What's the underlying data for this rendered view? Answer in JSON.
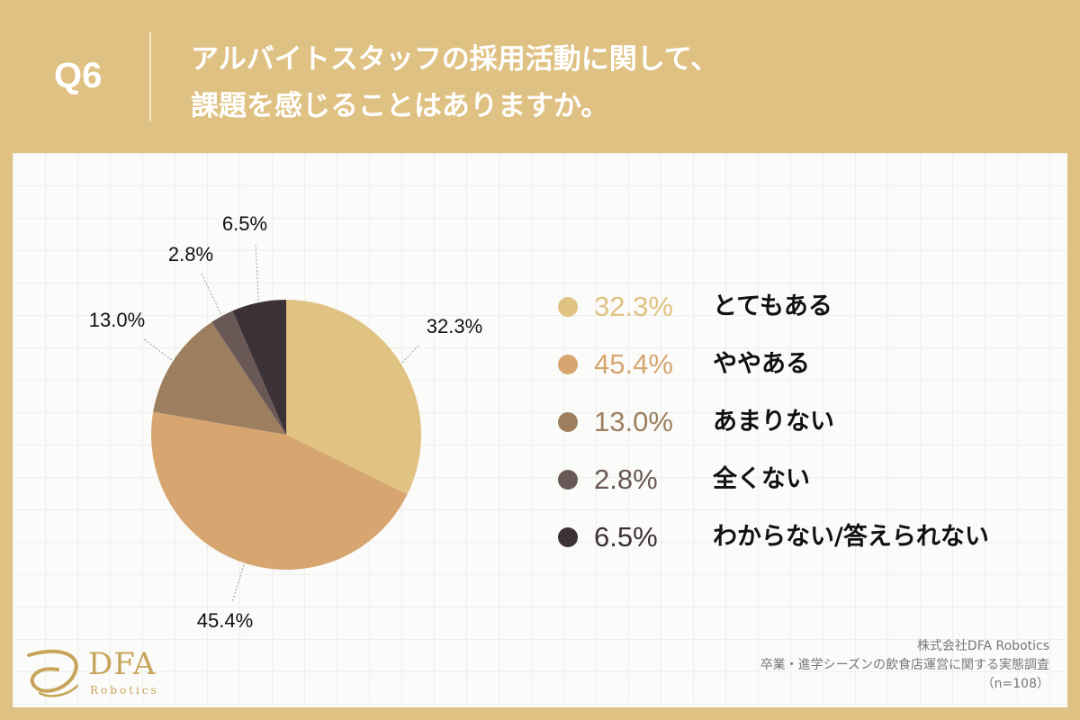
{
  "header": {
    "question_number": "Q6",
    "title_line1": "アルバイトスタッフの採用活動に関して、",
    "title_line2": "課題を感じることはありますか。"
  },
  "colors": {
    "background": "#dfc283",
    "series": [
      "#e0c282",
      "#d6a570",
      "#9d7f5f",
      "#695855",
      "#3d3138"
    ]
  },
  "chart_data": {
    "type": "pie",
    "title": "",
    "categories": [
      "とてもある",
      "ややある",
      "あまりない",
      "全くない",
      "わからない/答えられない"
    ],
    "values": [
      32.3,
      45.4,
      13.0,
      2.8,
      6.5
    ],
    "data_labels": [
      "32.3%",
      "45.4%",
      "13.0%",
      "2.8%",
      "6.5%"
    ],
    "legend_position": "right",
    "start_angle": "12 o'clock, clockwise"
  },
  "legend": {
    "items": [
      {
        "pct": "32.3%",
        "label": "とてもある"
      },
      {
        "pct": "45.4%",
        "label": "ややある"
      },
      {
        "pct": "13.0%",
        "label": "あまりない"
      },
      {
        "pct": "2.8%",
        "label": "全くない"
      },
      {
        "pct": "6.5%",
        "label": "わからない/答えられない"
      }
    ]
  },
  "logo": {
    "name": "DFA",
    "sub": "Robotics"
  },
  "footer": {
    "company": "株式会社DFA Robotics",
    "survey": "卒業・進学シーズンの飲食店運営に関する実態調査",
    "sample": "（n=108）"
  }
}
